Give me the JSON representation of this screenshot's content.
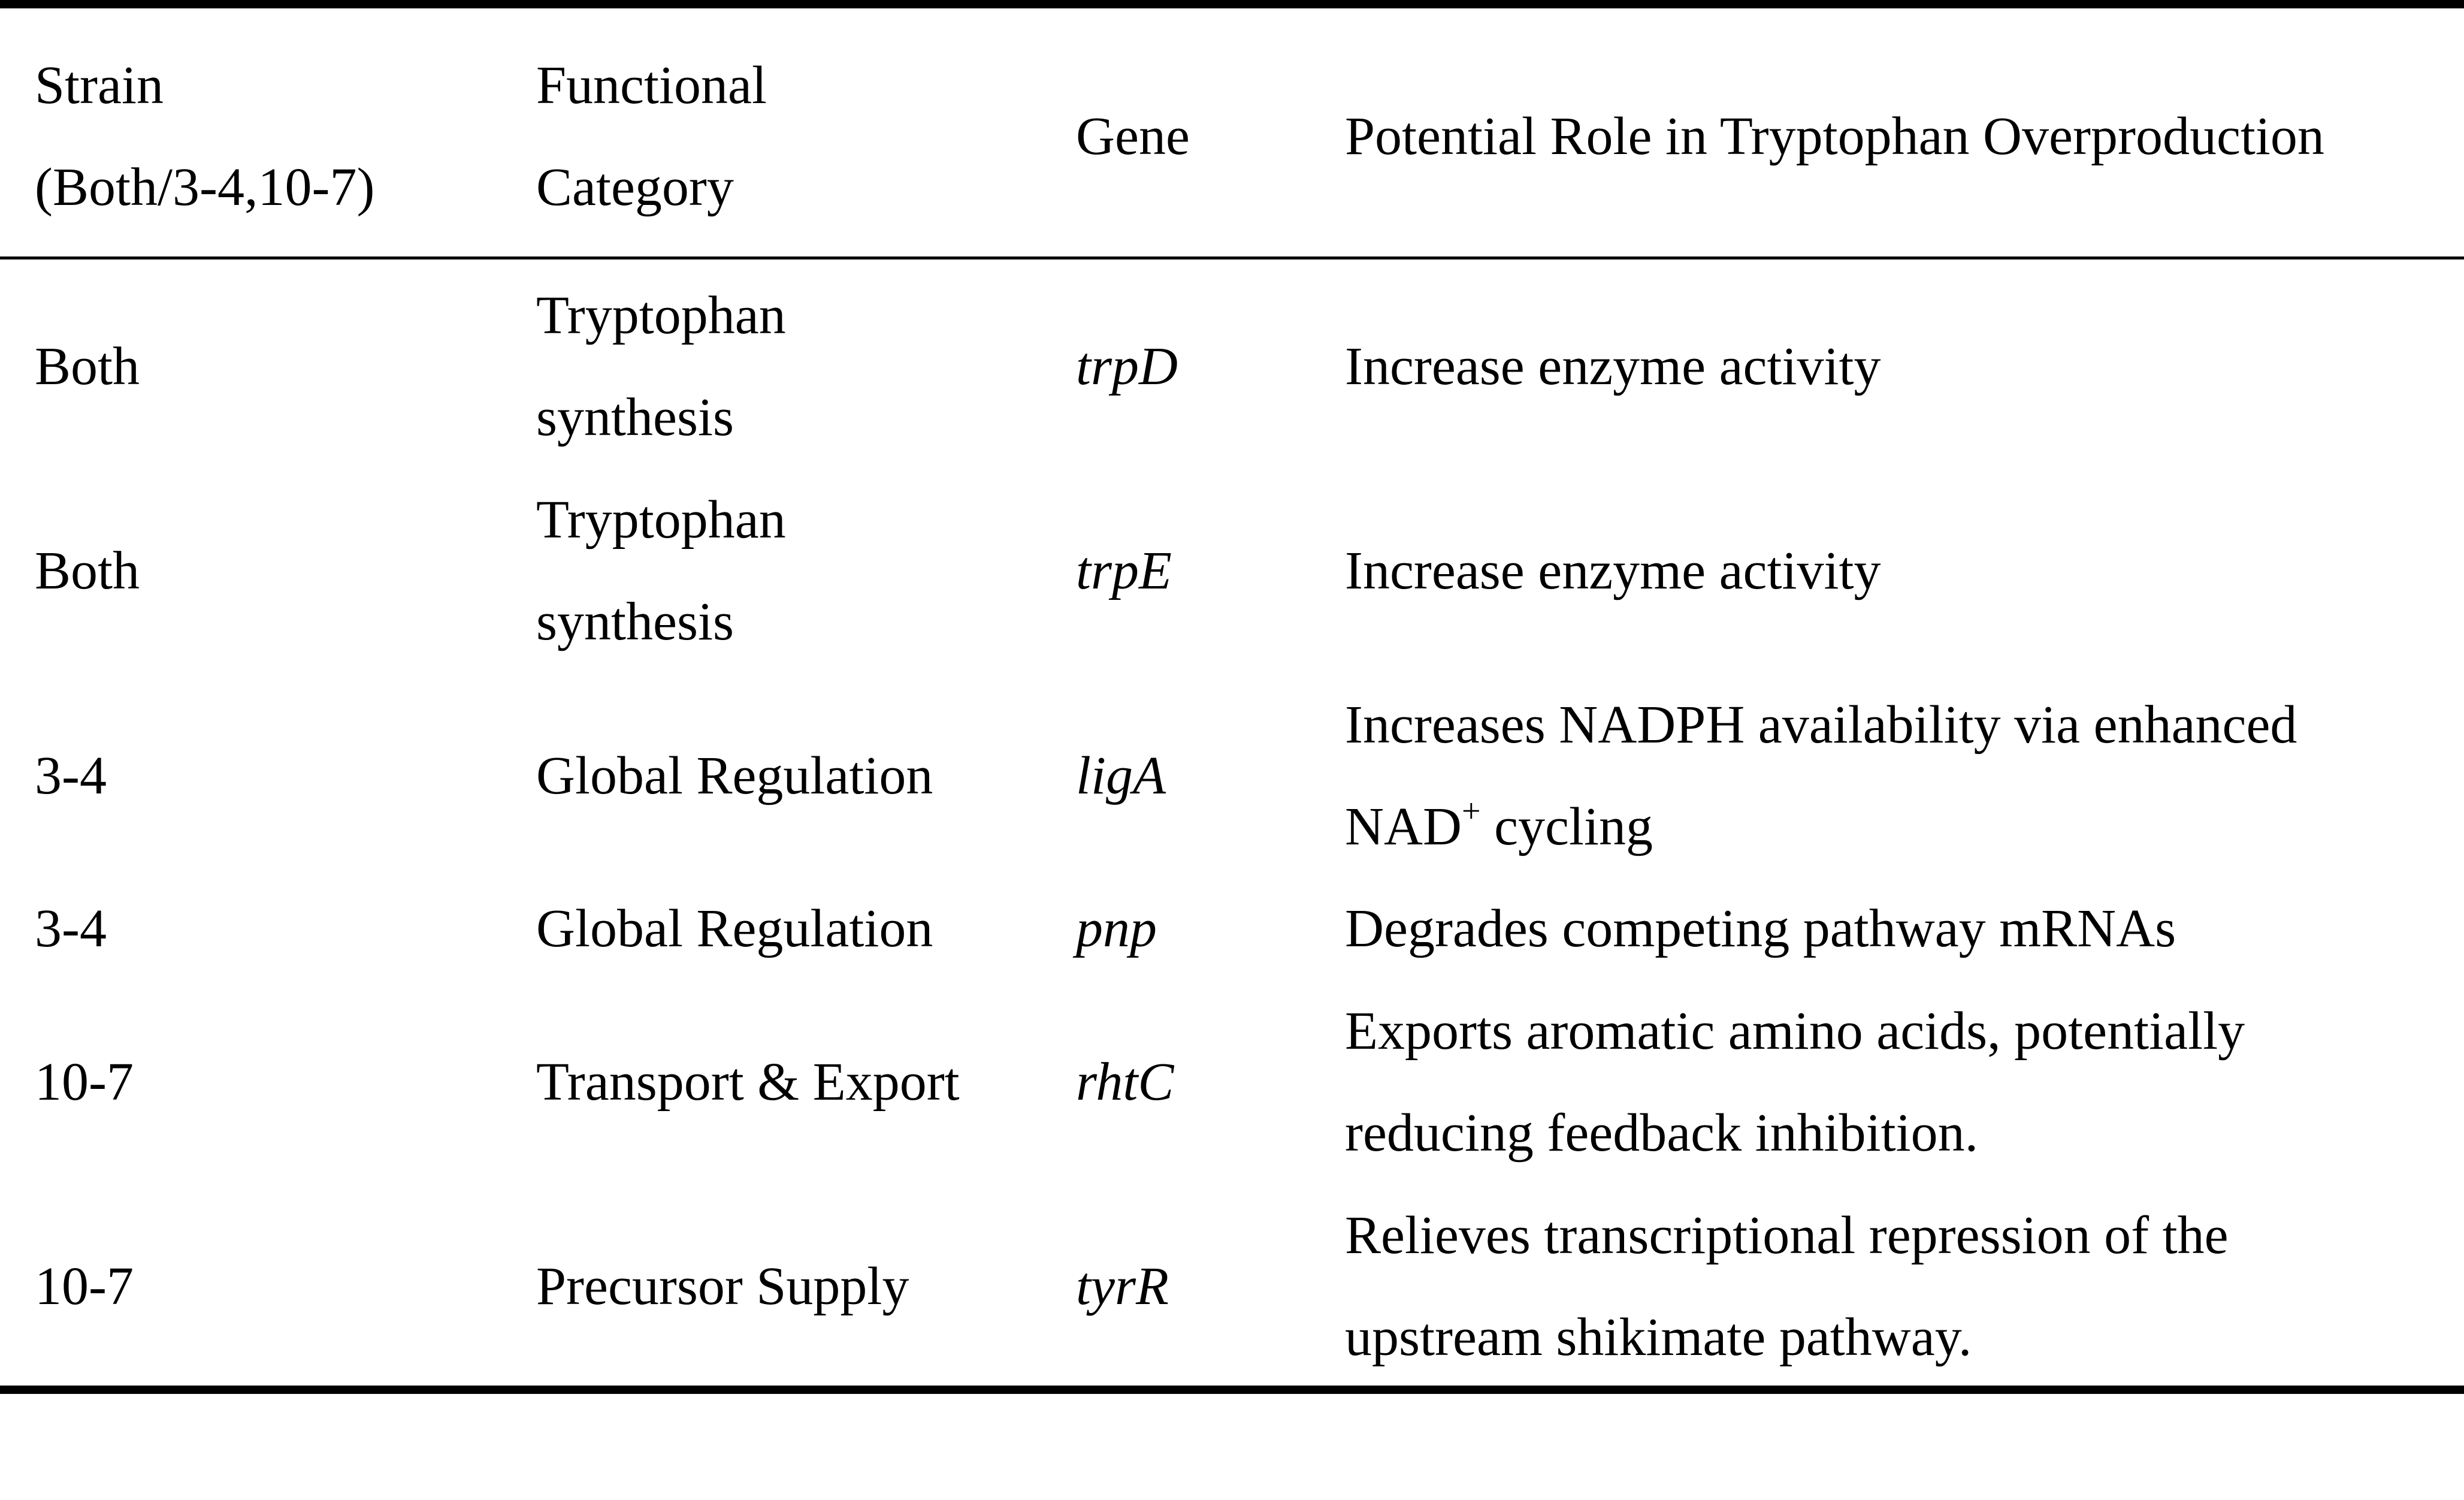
{
  "table": {
    "header": {
      "strain_line1": "Strain",
      "strain_line2": "(Both/3-4,10-7)",
      "category_line1": "Functional",
      "category_line2": "Category",
      "gene": "Gene",
      "role": "Potential Role in Tryptophan Overproduction"
    },
    "rows": [
      {
        "strain": "Both",
        "category_line1": "Tryptophan",
        "category_line2": "synthesis",
        "gene": "trpD",
        "role_line1": "Increase enzyme activity"
      },
      {
        "strain": "Both",
        "category_line1": "Tryptophan",
        "category_line2": "synthesis",
        "gene": "trpE",
        "role_line1": "Increase enzyme activity"
      },
      {
        "strain": "3-4",
        "category_line1": "Global Regulation",
        "gene": "ligA",
        "role_line1": "Increases NADPH availability via enhanced",
        "role_line2_pre": "NAD",
        "role_line2_sup": "+",
        "role_line2_post": " cycling"
      },
      {
        "strain": "3-4",
        "category_line1": "Global Regulation",
        "gene": "pnp",
        "role_line1": "Degrades competing pathway mRNAs"
      },
      {
        "strain": "10-7",
        "category_line1": "Transport & Export",
        "gene": "rhtC",
        "role_line1": "Exports aromatic amino acids, potentially",
        "role_line2": "reducing feedback inhibition."
      },
      {
        "strain": "10-7",
        "category_line1": "Precursor Supply",
        "gene": "tyrR",
        "role_line1": "Relieves transcriptional repression of the",
        "role_line2": "upstream shikimate pathway."
      }
    ]
  }
}
